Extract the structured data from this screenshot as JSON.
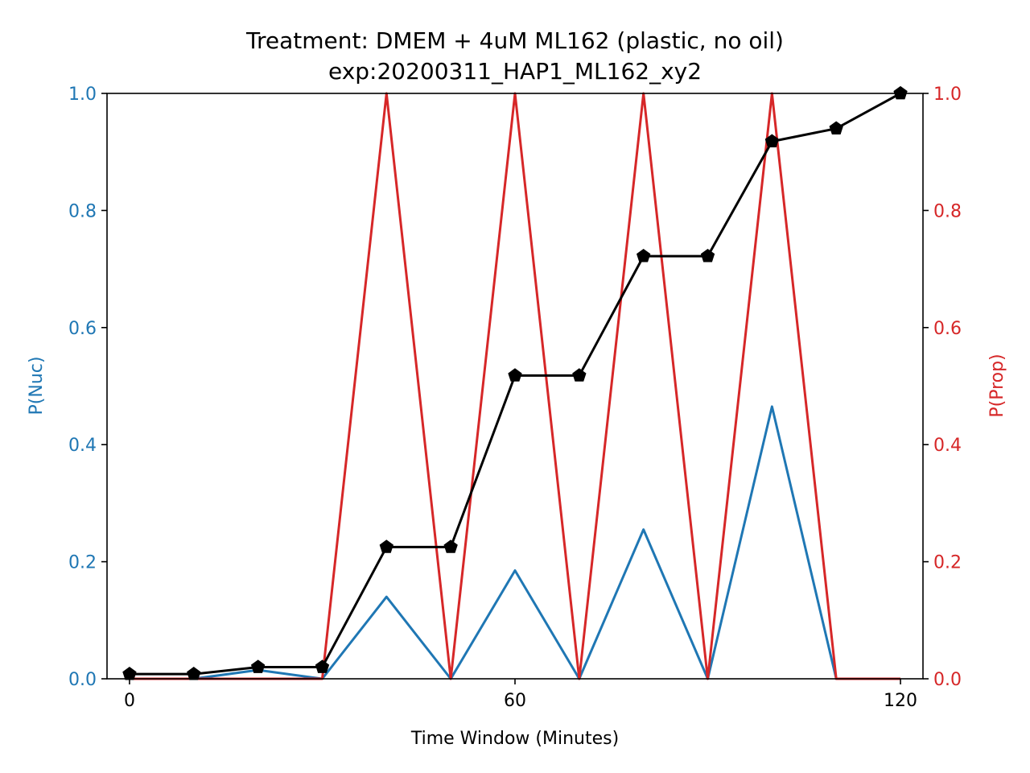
{
  "chart_data": {
    "type": "line",
    "title": "Treatment: DMEM + 4uM ML162 (plastic, no oil)",
    "subtitle": "exp:20200311_HAP1_ML162_xy2",
    "xlabel": "Time Window (Minutes)",
    "ylabel_left": "P(Nuc)",
    "ylabel_right": "P(Prop)",
    "xlim": [
      -3.5,
      123.5
    ],
    "ylim_left": [
      0,
      1
    ],
    "ylim_right": [
      0,
      1
    ],
    "x_ticks": [
      0,
      60,
      120
    ],
    "x_tick_labels": [
      "0",
      "60",
      "120"
    ],
    "y_ticks_left": [
      0,
      0.2,
      0.4,
      0.6,
      0.8,
      1.0
    ],
    "y_tick_labels_left": [
      "0.0",
      "0.2",
      "0.4",
      "0.6",
      "0.8",
      "1.0"
    ],
    "y_ticks_right": [
      0,
      0.2,
      0.4,
      0.6,
      0.8,
      1.0
    ],
    "y_tick_labels_right": [
      "0.0",
      "0.2",
      "0.4",
      "0.6",
      "0.8",
      "1.0"
    ],
    "left_axis_color": "#1f77b4",
    "right_axis_color": "#d62728",
    "x": [
      0,
      10,
      20,
      30,
      40,
      50,
      60,
      70,
      80,
      90,
      100,
      110,
      120
    ],
    "series": [
      {
        "axis": "left",
        "color": "#1f77b4",
        "marker": "none",
        "values": [
          0.0,
          0.0,
          0.015,
          0.0,
          0.14,
          0.0,
          0.185,
          0.0,
          0.255,
          0.0,
          0.465,
          0.0,
          0.0
        ]
      },
      {
        "axis": "right",
        "color": "#d62728",
        "marker": "none",
        "values": [
          0.0,
          0.0,
          0.0,
          0.0,
          1.0,
          0.0,
          1.0,
          0.0,
          1.0,
          0.0,
          1.0,
          0.0,
          0.0
        ]
      },
      {
        "axis": "left",
        "color": "#000000",
        "marker": "pentagon",
        "values": [
          0.008,
          0.008,
          0.02,
          0.02,
          0.225,
          0.225,
          0.518,
          0.518,
          0.722,
          0.722,
          0.918,
          0.94,
          1.0
        ]
      }
    ],
    "grid": false,
    "legend": "none"
  }
}
